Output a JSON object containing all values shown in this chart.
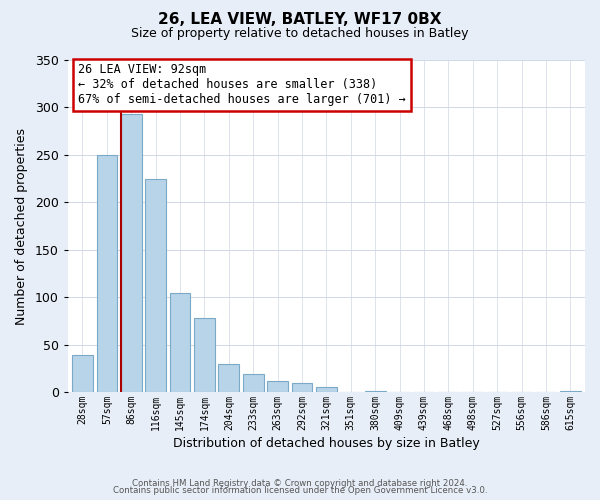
{
  "title": "26, LEA VIEW, BATLEY, WF17 0BX",
  "subtitle": "Size of property relative to detached houses in Batley",
  "xlabel": "Distribution of detached houses by size in Batley",
  "ylabel": "Number of detached properties",
  "bar_labels": [
    "28sqm",
    "57sqm",
    "86sqm",
    "116sqm",
    "145sqm",
    "174sqm",
    "204sqm",
    "233sqm",
    "263sqm",
    "292sqm",
    "321sqm",
    "351sqm",
    "380sqm",
    "409sqm",
    "439sqm",
    "468sqm",
    "498sqm",
    "527sqm",
    "556sqm",
    "586sqm",
    "615sqm"
  ],
  "bar_values": [
    39,
    250,
    293,
    225,
    104,
    78,
    30,
    19,
    12,
    10,
    5,
    0,
    1,
    0,
    0,
    0,
    0,
    0,
    0,
    0,
    1
  ],
  "bar_color": "#b8d4e8",
  "bar_edge_color": "#7aaac8",
  "vline_color": "#aa0000",
  "vline_x_index": 2,
  "ylim": [
    0,
    350
  ],
  "yticks": [
    0,
    50,
    100,
    150,
    200,
    250,
    300,
    350
  ],
  "annotation_title": "26 LEA VIEW: 92sqm",
  "annotation_line1": "← 32% of detached houses are smaller (338)",
  "annotation_line2": "67% of semi-detached houses are larger (701) →",
  "footer1": "Contains HM Land Registry data © Crown copyright and database right 2024.",
  "footer2": "Contains public sector information licensed under the Open Government Licence v3.0.",
  "bg_color": "#e8eef8",
  "plot_bg_color": "#ffffff",
  "grid_color": "#d0d8e8"
}
